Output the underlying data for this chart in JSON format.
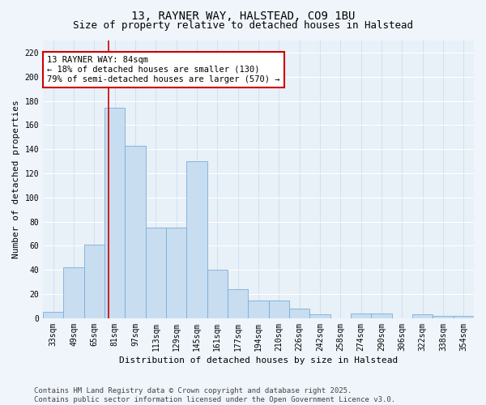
{
  "title": "13, RAYNER WAY, HALSTEAD, CO9 1BU",
  "subtitle": "Size of property relative to detached houses in Halstead",
  "xlabel": "Distribution of detached houses by size in Halstead",
  "ylabel": "Number of detached properties",
  "bar_color": "#c8ddf0",
  "bar_edge_color": "#7aaed6",
  "background_color": "#e8f0f8",
  "grid_color": "#ffffff",
  "categories": [
    "33sqm",
    "49sqm",
    "65sqm",
    "81sqm",
    "97sqm",
    "113sqm",
    "129sqm",
    "145sqm",
    "161sqm",
    "177sqm",
    "194sqm",
    "210sqm",
    "226sqm",
    "242sqm",
    "258sqm",
    "274sqm",
    "290sqm",
    "306sqm",
    "322sqm",
    "338sqm",
    "354sqm"
  ],
  "values": [
    5,
    42,
    61,
    174,
    143,
    75,
    75,
    130,
    40,
    24,
    15,
    15,
    8,
    3,
    0,
    4,
    4,
    0,
    3,
    2,
    2
  ],
  "ylim": [
    0,
    230
  ],
  "yticks": [
    0,
    20,
    40,
    60,
    80,
    100,
    120,
    140,
    160,
    180,
    200,
    220
  ],
  "vline_color": "#cc0000",
  "vline_x_index": 3,
  "annotation_text": "13 RAYNER WAY: 84sqm\n← 18% of detached houses are smaller (130)\n79% of semi-detached houses are larger (570) →",
  "annotation_box_color": "#ffffff",
  "annotation_box_edge_color": "#cc0000",
  "footer": "Contains HM Land Registry data © Crown copyright and database right 2025.\nContains public sector information licensed under the Open Government Licence v3.0.",
  "title_fontsize": 10,
  "subtitle_fontsize": 9,
  "axis_label_fontsize": 8,
  "tick_fontsize": 7,
  "annotation_fontsize": 7.5,
  "footer_fontsize": 6.5
}
